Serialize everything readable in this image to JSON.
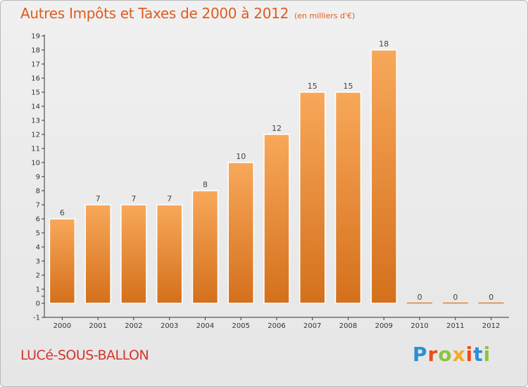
{
  "title": "Autres Impôts et Taxes de 2000 à 2012",
  "unit_note": "(en milliers d'€)",
  "commune": "LUCé-SOUS-BALLON",
  "brand": {
    "letters": [
      "P",
      "r",
      "o",
      "x",
      "i",
      "t",
      "i"
    ],
    "colors": [
      "#2a8fd6",
      "#e94e1b",
      "#8bc53f",
      "#f7a823",
      "#e94e1b",
      "#2a8fd6",
      "#8bc53f"
    ]
  },
  "colors": {
    "bar_light": "#f8a85a",
    "bar_dark": "#d4701c",
    "title": "#e15b1e"
  },
  "chart_data": {
    "type": "bar",
    "categories": [
      "2000",
      "2001",
      "2002",
      "2003",
      "2004",
      "2005",
      "2006",
      "2007",
      "2008",
      "2009",
      "2010",
      "2011",
      "2012"
    ],
    "values": [
      6,
      7,
      7,
      7,
      8,
      10,
      12,
      15,
      15,
      18,
      0,
      0,
      0
    ],
    "data_labels": [
      "6",
      "7",
      "7",
      "7",
      "8",
      "10",
      "12",
      "15",
      "15",
      "18",
      "0",
      "0",
      "0"
    ],
    "yticks": [
      "-1",
      "0",
      "",
      "1",
      "2",
      "3",
      "4",
      "5",
      "6",
      "7",
      "8",
      "9",
      "10",
      "11",
      "12",
      "13",
      "14",
      "15",
      "16",
      "17",
      "18",
      "19"
    ],
    "ylim": [
      -1,
      19
    ],
    "grid": false,
    "title": "Autres Impôts et Taxes de 2000 à 2012",
    "xlabel": "",
    "ylabel": ""
  }
}
